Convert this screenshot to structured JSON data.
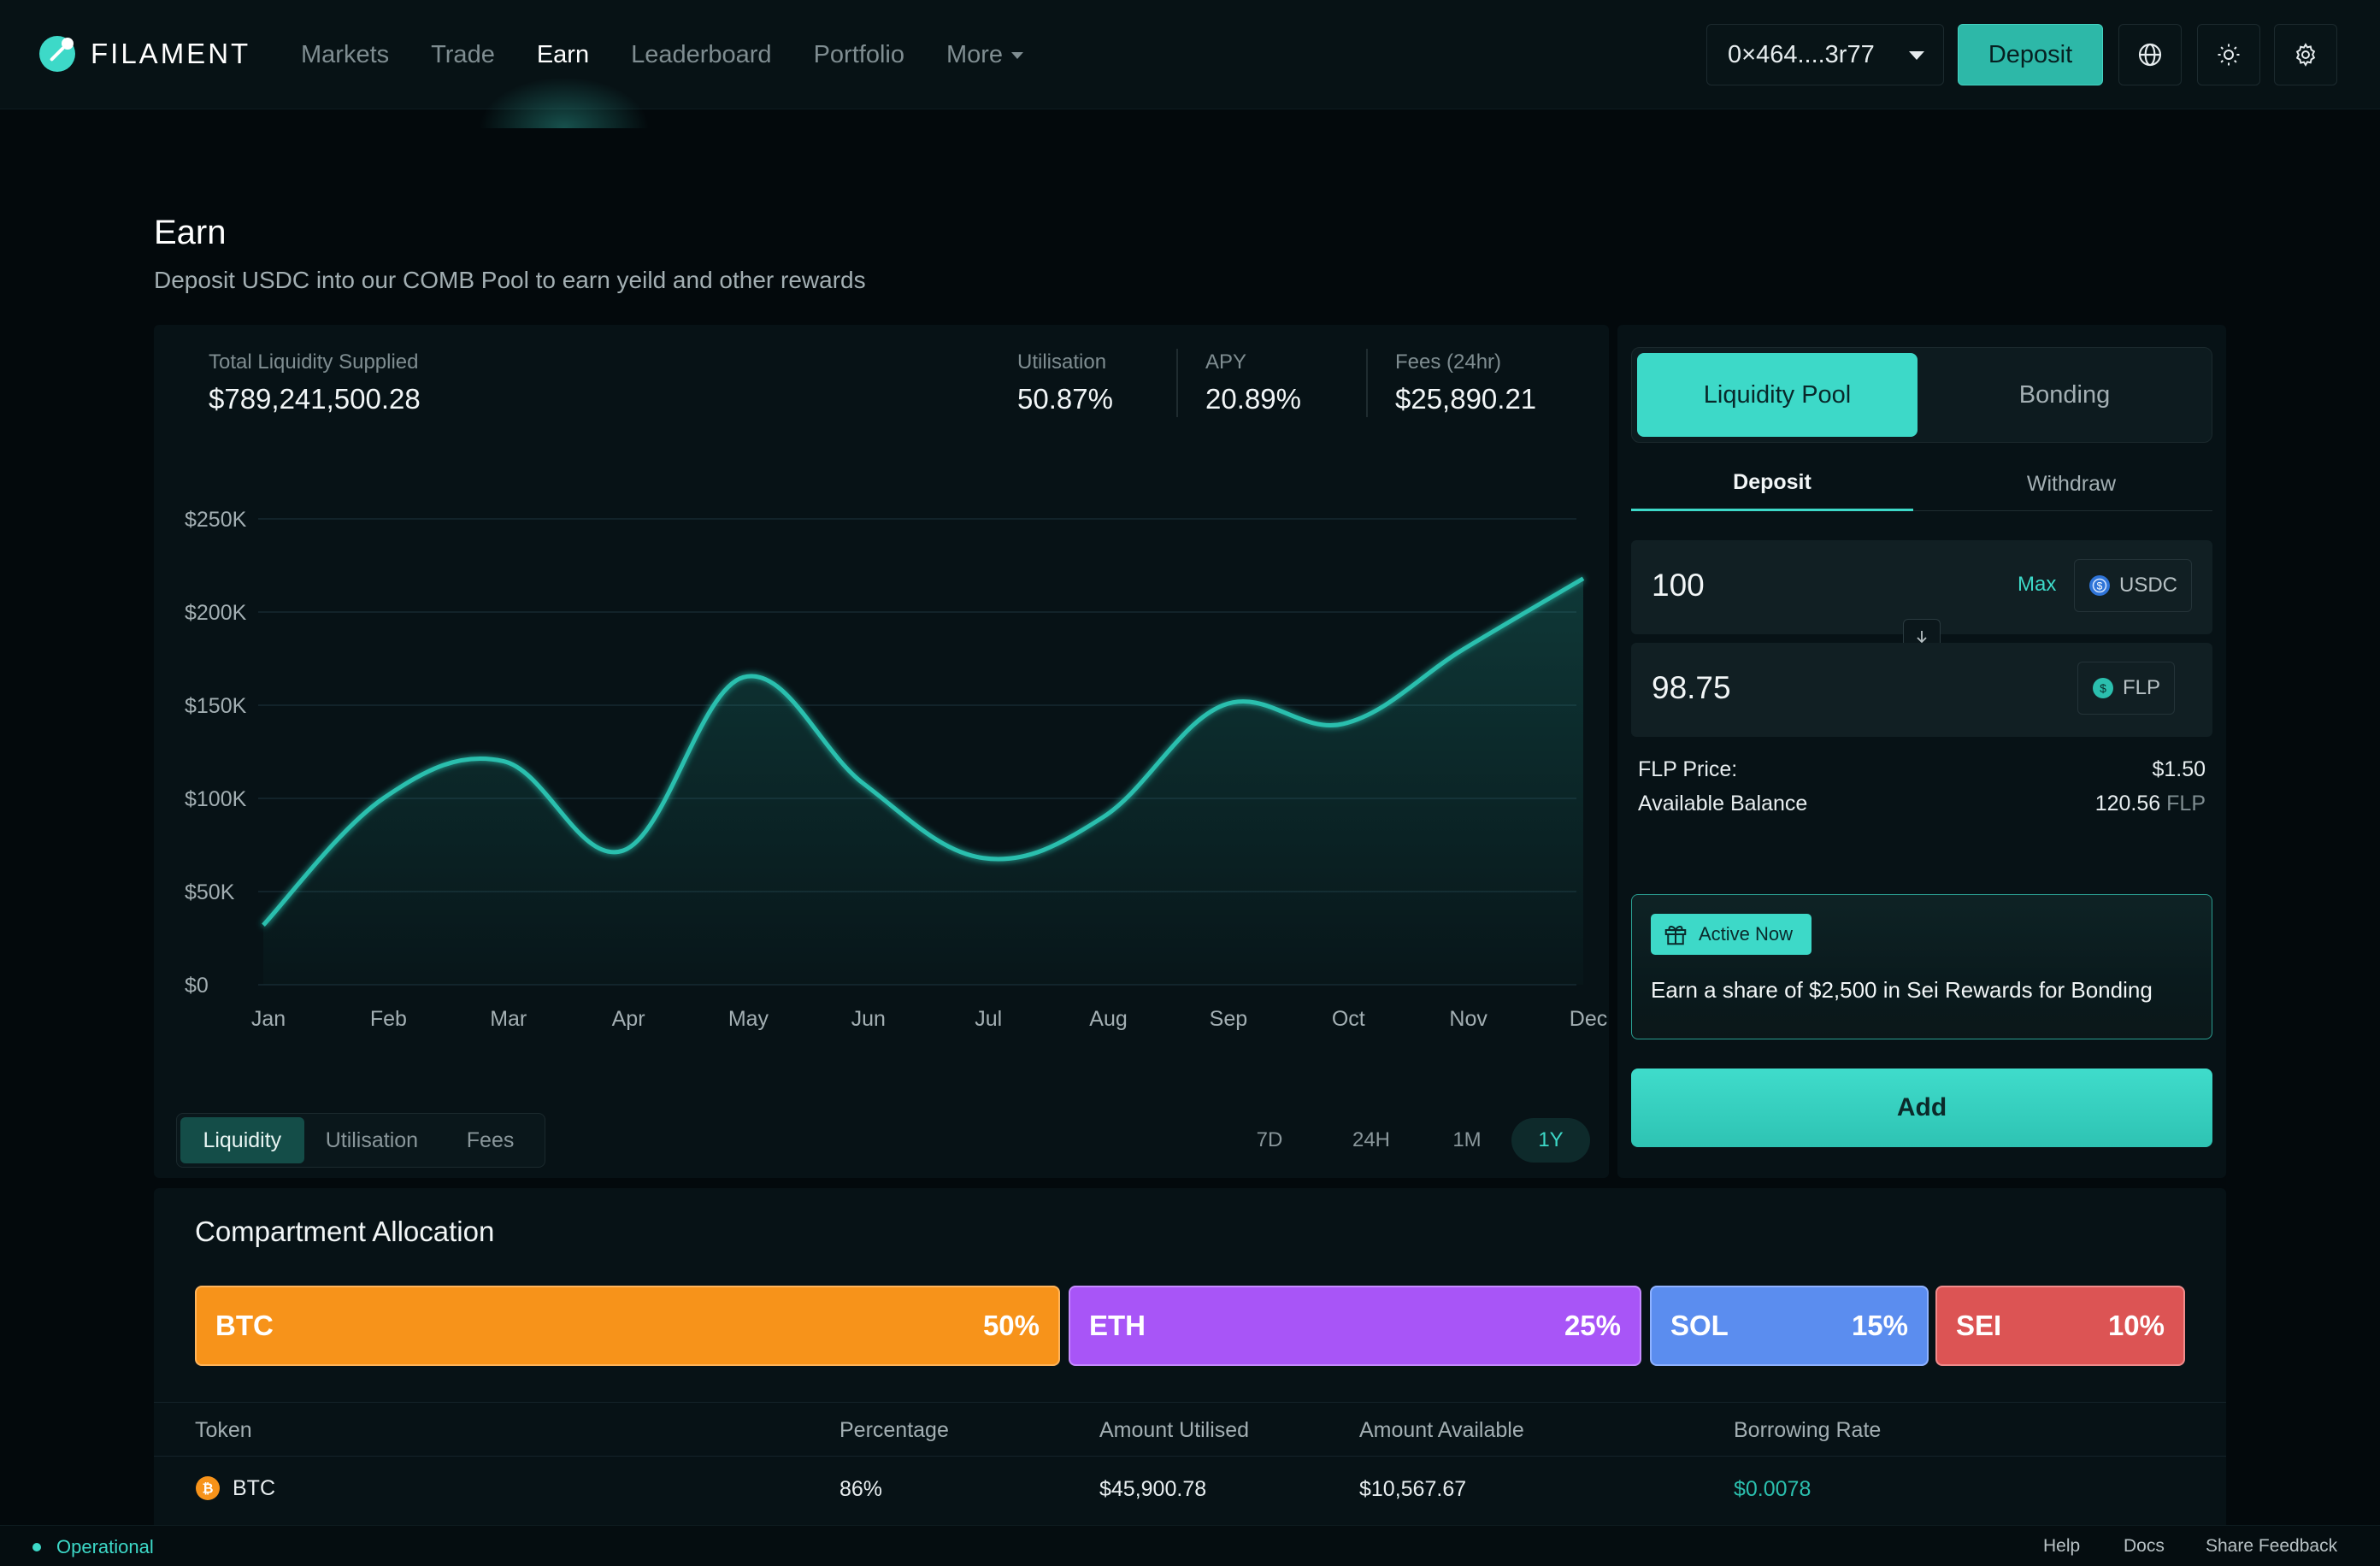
{
  "brand": {
    "name": "FILAMENT"
  },
  "nav": {
    "items": [
      "Markets",
      "Trade",
      "Earn",
      "Leaderboard",
      "Portfolio",
      "More"
    ],
    "active": "Earn"
  },
  "header": {
    "wallet": "0×464....3r77",
    "deposit_label": "Deposit"
  },
  "page": {
    "title": "Earn",
    "subtitle": "Deposit USDC into our COMB Pool to earn yeild and other rewards"
  },
  "stats": {
    "total_liquidity_label": "Total Liquidity Supplied",
    "total_liquidity_value": "$789,241,500.28",
    "utilisation_label": "Utilisation",
    "utilisation_value": "50.87%",
    "apy_label": "APY",
    "apy_value": "20.89%",
    "fees_label": "Fees (24hr)",
    "fees_value": "$25,890.21"
  },
  "chart_data": {
    "type": "area",
    "categories": [
      "Jan",
      "Feb",
      "Mar",
      "Apr",
      "May",
      "Jun",
      "Jul",
      "Aug",
      "Sep",
      "Oct",
      "Nov",
      "Dec"
    ],
    "y_ticks": [
      "$0",
      "$50K",
      "$100K",
      "$150K",
      "$200K",
      "$250K"
    ],
    "ylim": [
      0,
      250000
    ],
    "series": [
      {
        "values": [
          32000,
          100000,
          120000,
          72000,
          165000,
          108000,
          68000,
          90000,
          150000,
          140000,
          180000,
          218000
        ]
      }
    ],
    "grid": true,
    "color": "#2bbfae"
  },
  "chart_controls": {
    "metrics": [
      "Liquidity",
      "Utilisation",
      "Fees"
    ],
    "active_metric": "Liquidity",
    "ranges": [
      "7D",
      "24H",
      "1M",
      "1Y"
    ],
    "active_range": "1Y"
  },
  "side": {
    "tabs": [
      "Liquidity Pool",
      "Bonding"
    ],
    "active_tab": "Liquidity Pool",
    "sub_tabs": [
      "Deposit",
      "Withdraw"
    ],
    "active_sub_tab": "Deposit",
    "input_amount": "100",
    "max_label": "Max",
    "input_token": "USDC",
    "output_amount": "98.75",
    "output_token": "FLP",
    "flp_price_label": "FLP Price:",
    "flp_price_value": "$1.50",
    "balance_label": "Available Balance",
    "balance_value": "120.56",
    "balance_unit": "FLP",
    "promo_badge": "Active Now",
    "promo_text": "Earn a share of $2,500 in Sei Rewards for Bonding",
    "add_label": "Add"
  },
  "allocation": {
    "title": "Compartment Allocation",
    "bars": [
      {
        "token": "BTC",
        "pct": "50%",
        "color": "#f7931a"
      },
      {
        "token": "ETH",
        "pct": "25%",
        "color": "#a855f7"
      },
      {
        "token": "SOL",
        "pct": "15%",
        "color": "#5b8def"
      },
      {
        "token": "SEI",
        "pct": "10%",
        "color": "#dc5454"
      }
    ],
    "columns": [
      "Token",
      "Percentage",
      "Amount Utilised",
      "Amount Available",
      "Borrowing Rate"
    ],
    "rows": [
      {
        "token": "BTC",
        "percentage": "86%",
        "utilised": "$45,900.78",
        "available": "$10,567.67",
        "rate": "$0.0078"
      }
    ]
  },
  "footer": {
    "status": "Operational",
    "links": [
      "Help",
      "Docs",
      "Share Feedback"
    ]
  }
}
